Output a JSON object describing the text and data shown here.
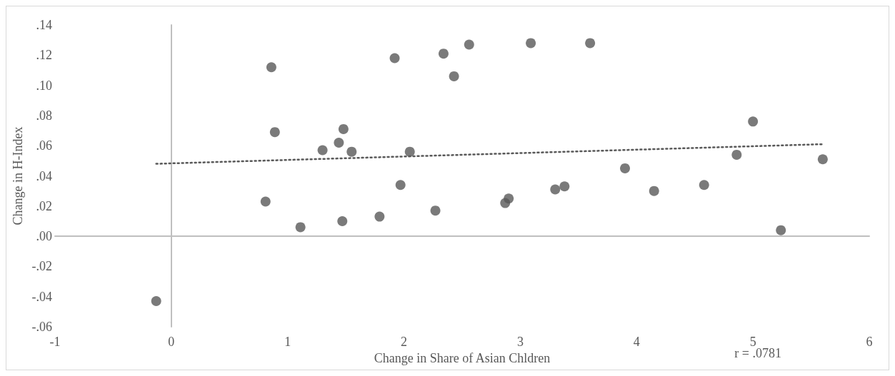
{
  "chart_data": {
    "type": "scatter",
    "xlabel": "Change in Share of Asian Chldren",
    "ylabel": "Change in H-Index",
    "annotations": [
      "r = .0781"
    ],
    "xlim": [
      -1,
      6
    ],
    "xticks": [
      -1,
      0,
      1,
      2,
      3,
      4,
      5,
      6
    ],
    "ylim": [
      -0.06,
      0.14
    ],
    "yticks": [
      {
        "value": -0.06,
        "label": "-.06"
      },
      {
        "value": -0.04,
        "label": "-.04"
      },
      {
        "value": -0.02,
        "label": "-.02"
      },
      {
        "value": 0,
        "label": ".00"
      },
      {
        "value": 0.02,
        "label": ".02"
      },
      {
        "value": 0.04,
        "label": ".04"
      },
      {
        "value": 0.06,
        "label": ".06"
      },
      {
        "value": 0.08,
        "label": ".08"
      },
      {
        "value": 0.1,
        "label": ".10"
      },
      {
        "value": 0.12,
        "label": ".12"
      },
      {
        "value": 0.14,
        "label": ".14"
      }
    ],
    "marker": "circle",
    "series": [
      {
        "color": "#595959",
        "x": [
          -0.13,
          0.86,
          0.89,
          0.81,
          1.11,
          1.3,
          1.44,
          1.48,
          1.47,
          1.55,
          1.79,
          1.92,
          1.97,
          2.05,
          2.27,
          2.34,
          2.43,
          2.56,
          2.87,
          2.9,
          3.09,
          3.3,
          3.38,
          3.6,
          3.9,
          4.15,
          4.58,
          4.86,
          5.0,
          5.24,
          5.6
        ],
        "values": [
          -0.043,
          0.112,
          0.069,
          0.023,
          0.006,
          0.057,
          0.062,
          0.071,
          0.01,
          0.056,
          0.013,
          0.118,
          0.034,
          0.056,
          0.017,
          0.121,
          0.106,
          0.127,
          0.022,
          0.025,
          0.128,
          0.031,
          0.033,
          0.128,
          0.045,
          0.03,
          0.034,
          0.054,
          0.076,
          0.004,
          0.051
        ]
      },
      {
        "type": "line",
        "color": "#595959",
        "line_style": "dotted",
        "marker": "none",
        "x": [
          -0.13,
          5.6
        ],
        "values": [
          0.048,
          0.061
        ]
      }
    ]
  }
}
